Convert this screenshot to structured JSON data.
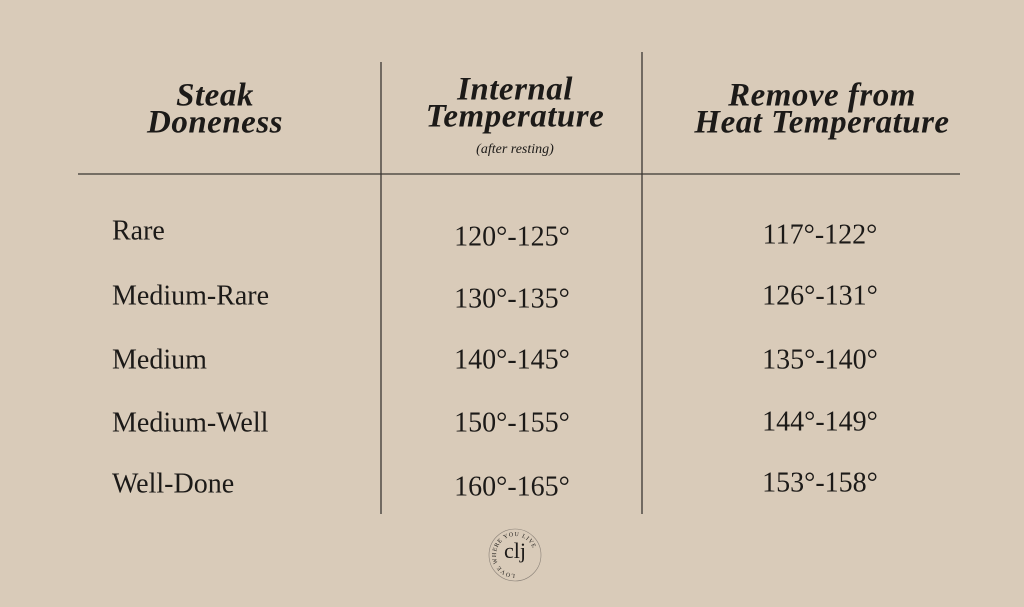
{
  "header": {
    "columns": [
      {
        "lines": [
          "Steak",
          "Doneness"
        ]
      },
      {
        "lines": [
          "Internal",
          "Temperature"
        ],
        "note": "(after resting)"
      },
      {
        "lines": [
          "Remove from",
          "Heat Temperature"
        ]
      }
    ]
  },
  "table": {
    "rows": [
      [
        "Rare",
        "120°-125°",
        "117°-122°"
      ],
      [
        "Medium-Rare",
        "130°-135°",
        "126°-131°"
      ],
      [
        "Medium",
        "140°-145°",
        "135°-140°"
      ],
      [
        "Medium-Well",
        "150°-155°",
        "144°-149°"
      ],
      [
        "Well-Done",
        "160°-165°",
        "153°-158°"
      ]
    ]
  },
  "logo": {
    "mark": "clj",
    "ring": "LOVE WHERE YOU LIVE"
  }
}
